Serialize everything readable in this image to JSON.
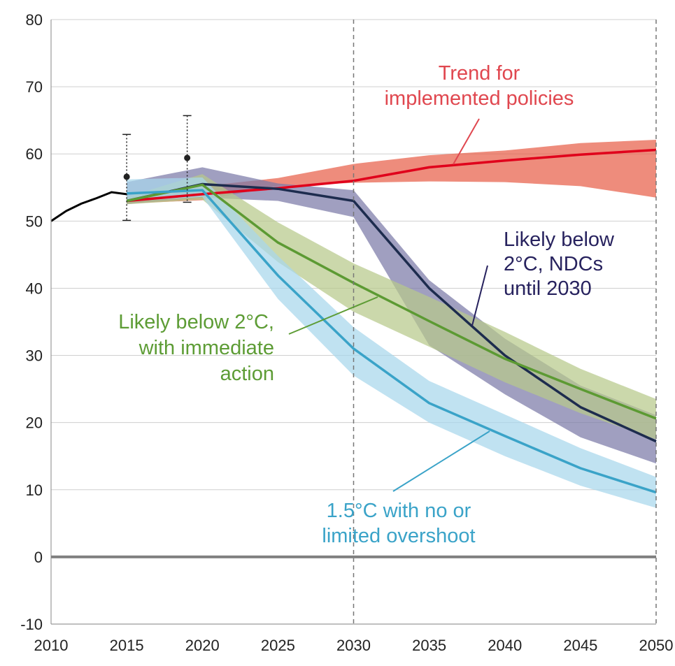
{
  "chart_data": {
    "type": "line",
    "title": "",
    "xlabel": "",
    "ylabel": "",
    "xlim": [
      2010,
      2050
    ],
    "ylim": [
      -10,
      80
    ],
    "x_ticks": [
      2010,
      2015,
      2020,
      2025,
      2030,
      2035,
      2040,
      2045,
      2050
    ],
    "y_ticks": [
      -10,
      0,
      10,
      20,
      30,
      40,
      50,
      60,
      70,
      80
    ],
    "grid": "horizontal",
    "vertical_reference_lines": [
      2030,
      2050
    ],
    "zero_line": 0,
    "historical": {
      "color": "#000000",
      "x": [
        2010,
        2011,
        2012,
        2013,
        2014,
        2015
      ],
      "y": [
        50.0,
        51.5,
        52.6,
        53.4,
        54.3,
        54.0
      ]
    },
    "error_bars": [
      {
        "x": 2015,
        "y": 56.6,
        "low": 50.1,
        "high": 62.9
      },
      {
        "x": 2019,
        "y": 59.4,
        "low": 52.8,
        "high": 65.7
      }
    ],
    "series": [
      {
        "name": "Trend for implemented policies",
        "color": "#e0001b",
        "band_color": "#e8604a",
        "x": [
          2015,
          2020,
          2025,
          2030,
          2035,
          2040,
          2045,
          2050
        ],
        "y": [
          53.0,
          54.0,
          54.9,
          56.0,
          58.0,
          59.0,
          59.9,
          60.6
        ],
        "low": [
          52.6,
          53.1,
          55.2,
          55.7,
          55.9,
          55.8,
          55.2,
          53.5
        ],
        "high": [
          53.6,
          55.2,
          56.4,
          58.5,
          59.8,
          60.5,
          61.6,
          62.1
        ]
      },
      {
        "name": "Likely below 2°C, NDCs until 2030",
        "color": "#1d2c4e",
        "band_color": "#7b7aa8",
        "x": [
          2015,
          2020,
          2025,
          2030,
          2035,
          2040,
          2045,
          2050
        ],
        "y": [
          53.0,
          55.5,
          54.8,
          53.0,
          40.0,
          30.0,
          22.3,
          17.2
        ],
        "low": [
          52.5,
          53.5,
          53.0,
          50.6,
          31.5,
          24.2,
          17.8,
          13.9
        ],
        "high": [
          55.8,
          58.0,
          55.6,
          54.6,
          41.2,
          32.5,
          25.5,
          21.1
        ]
      },
      {
        "name": "Likely below 2°C, with immediate action",
        "color": "#5c9a33",
        "band_color": "#b7c98a",
        "x": [
          2015,
          2020,
          2025,
          2030,
          2035,
          2040,
          2045,
          2050
        ],
        "y": [
          53.0,
          55.4,
          46.8,
          40.8,
          35.1,
          29.5,
          25.0,
          20.6
        ],
        "low": [
          52.5,
          53.2,
          43.9,
          36.5,
          31.3,
          26.0,
          21.4,
          17.5
        ],
        "high": [
          53.6,
          57.0,
          49.8,
          43.7,
          38.7,
          33.5,
          28.0,
          23.5
        ]
      },
      {
        "name": "1.5°C with no or limited overshoot",
        "color": "#3aa3c8",
        "band_color": "#a8d7ec",
        "x": [
          2015,
          2020,
          2025,
          2030,
          2035,
          2040,
          2045,
          2050
        ],
        "y": [
          54.1,
          54.6,
          41.9,
          31.0,
          22.9,
          18.0,
          13.2,
          9.6
        ],
        "low": [
          52.9,
          53.6,
          38.4,
          27.0,
          20.0,
          15.0,
          10.6,
          7.3
        ],
        "high": [
          56.2,
          56.5,
          44.8,
          34.2,
          26.2,
          21.2,
          16.2,
          11.9
        ]
      }
    ],
    "annotations": [
      {
        "lines": [
          "Trend for",
          "implemented policies"
        ],
        "color": "#e0474f"
      },
      {
        "lines": [
          "Likely below",
          "2°C, NDCs",
          "until 2030"
        ],
        "color": "#27225e"
      },
      {
        "lines": [
          "Likely below 2°C,",
          "with immediate",
          "action"
        ],
        "color": "#5d9c35"
      },
      {
        "lines": [
          "1.5°C with no or",
          "limited overshoot"
        ],
        "color": "#3aa3c8"
      }
    ]
  }
}
